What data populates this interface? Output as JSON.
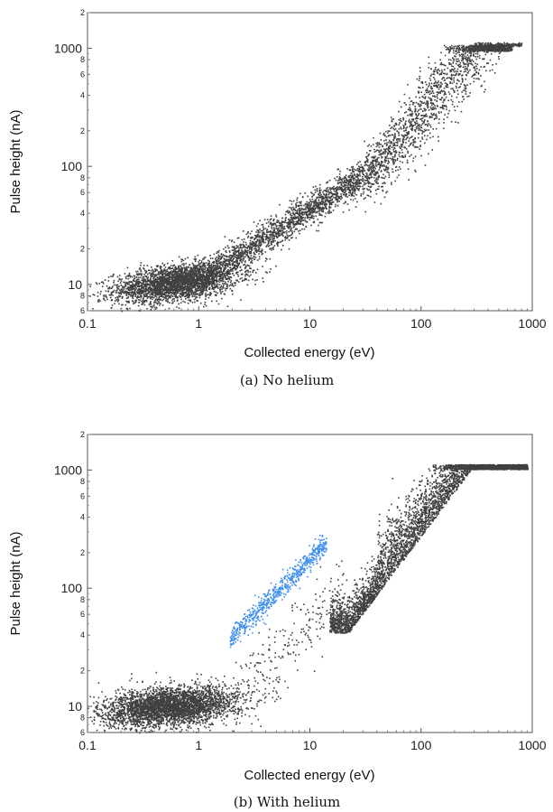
{
  "figure": {
    "panels": [
      {
        "xlabel": "Collected energy (eV)",
        "ylabel": "Pulse height (nA)",
        "caption": "(a) No helium"
      },
      {
        "xlabel": "Collected energy (eV)",
        "ylabel": "Pulse height (nA)",
        "caption": "(b) With helium"
      }
    ]
  },
  "chart_data": [
    {
      "type": "scatter",
      "title": "",
      "caption": "(a) No helium",
      "xlabel": "Collected energy (eV)",
      "ylabel": "Pulse height (nA)",
      "xscale": "log",
      "yscale": "log",
      "xlim": [
        0.1,
        1000
      ],
      "ylim": [
        6,
        2000
      ],
      "x_ticks": [
        "0.1",
        "1",
        "10",
        "100",
        "1000"
      ],
      "y_major_ticks": [
        "10",
        "100",
        "1000"
      ],
      "y_minor_ticks": [
        "6",
        "8",
        "2",
        "4",
        "6",
        "8",
        "2",
        "4",
        "6",
        "8",
        "2"
      ],
      "grid": false,
      "series": [
        {
          "color": "#404040",
          "population": [
            {
              "x_range": [
                0.12,
                3.0
              ],
              "y_center": 10.5,
              "count": 2900
            },
            {
              "x_range": [
                1.0,
                700
              ],
              "y_relation": "y ≈ 12·x^0.42 rising to 1000 near x≈300–800",
              "count": 3600
            },
            {
              "x_range": [
                300,
                800
              ],
              "y_center": 1100,
              "count": 150
            }
          ]
        }
      ]
    },
    {
      "type": "scatter",
      "title": "",
      "caption": "(b) With helium",
      "xlabel": "Collected energy (eV)",
      "ylabel": "Pulse height (nA)",
      "xscale": "log",
      "yscale": "log",
      "xlim": [
        0.1,
        1000
      ],
      "ylim": [
        6,
        2000
      ],
      "x_ticks": [
        "0.1",
        "1",
        "10",
        "100",
        "1000"
      ],
      "y_major_ticks": [
        "10",
        "100",
        "1000"
      ],
      "y_minor_ticks": [
        "6",
        "8",
        "2",
        "4",
        "6",
        "8",
        "2",
        "4",
        "6",
        "8",
        "2"
      ],
      "grid": false,
      "series": [
        {
          "color": "#404040",
          "population": [
            {
              "x_range": [
                0.12,
                3.0
              ],
              "y_center": 10,
              "count": 3400
            },
            {
              "x_range": [
                15,
                900
              ],
              "y_relation": "band from ~45 at x≈20 rising to ~1100 at x≈400–900",
              "count": 4000
            },
            {
              "x_range": [
                2,
                20
              ],
              "y_center": 30,
              "count": 220
            }
          ]
        },
        {
          "color": "#3d8ef0",
          "population": [
            {
              "x_range": [
                1.8,
                14
              ],
              "y_relation": "narrow band from ~38 at x≈2 to ~250 at x≈14",
              "count": 650
            }
          ]
        }
      ]
    }
  ]
}
